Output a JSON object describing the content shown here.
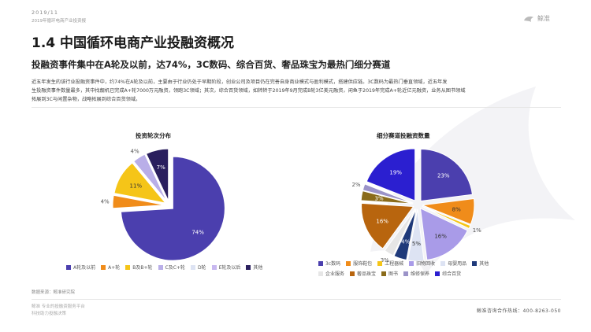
{
  "header": {
    "date": "2019/11",
    "report_name": "2019年循环电商产业投资报",
    "logo_text": "鲸准"
  },
  "page_title": "1.4 中国循环电商产业投融资概况",
  "subtitle": "投融资事件集中在A轮及以前，达74%，3C数码、综合百货、奢品珠宝为最热门细分赛道",
  "body_lines": [
    "近五年发生的该行业投融资事件中，约74%在A轮及以前，主要由于行业仍处于早期阶段，创业公司及项目仍在完善自身商业模式与盈利模式，搭建供应链。3C数码为最热门垂直领域，近五年发",
    "生投融资事件数量最多，其中找靓机已完成A+轮7000万元融资，领跑3C领域；其次，综合百货领域，如转转于2019年9月完成B轮3亿美元融资，闲鱼于2019年完成A+轮近亿元融资，业务从图书领域",
    "拓展到3C与闲置杂物，战略拓展到综合百货领域。"
  ],
  "source": "数据来源：鲸准研究院",
  "footer_left": [
    "鲸准 专业的投融资服务平台",
    "科技助力投融决策"
  ],
  "footer_right": "鲸准咨询合作热线：400-8263-050",
  "colors": {
    "brand_purple": "#4b3fae",
    "orange": "#f39c12",
    "gold": "#f5c518",
    "lavender": "#b9aee8",
    "pale_blue": "#dde3f3",
    "light_purple": "#c8b8f0",
    "navy": "#2a1f5e"
  },
  "chart_data": [
    {
      "type": "pie",
      "title": "投资轮次分布",
      "slices": [
        {
          "label": "A轮及以前",
          "value": 74,
          "color": "#4b3fae",
          "value_label": "74%"
        },
        {
          "label": "A+轮",
          "value": 4,
          "color": "#f08c1a",
          "value_label": "4%"
        },
        {
          "label": "B及B+轮",
          "value": 11,
          "color": "#f5c518",
          "value_label": "11%"
        },
        {
          "label": "C及C+轮",
          "value": 4,
          "color": "#b9aee8",
          "value_label": "4%"
        },
        {
          "label": "D轮",
          "value": 0,
          "color": "#dde3f3",
          "value_label": ""
        },
        {
          "label": "E轮及以后",
          "value": 0,
          "color": "#c8b8f0",
          "value_label": ""
        },
        {
          "label": "其他",
          "value": 7,
          "color": "#2a1f5e",
          "value_label": "7%"
        }
      ],
      "legend_position": "bottom"
    },
    {
      "type": "pie",
      "title": "细分赛道投融资数量",
      "slices": [
        {
          "label": "3c数码",
          "value": 23,
          "color": "#4b3fae",
          "value_label": "23%"
        },
        {
          "label": "服饰鞋包",
          "value": 8,
          "color": "#f08c1a",
          "value_label": "8%"
        },
        {
          "label": "工程器械",
          "value": 1,
          "color": "#f5c518",
          "value_label": "1%"
        },
        {
          "label": "旧物回收",
          "value": 16,
          "color": "#a99be8",
          "value_label": "16%"
        },
        {
          "label": "母婴用品",
          "value": 5,
          "color": "#dde3f3",
          "value_label": "5%"
        },
        {
          "label": "其他",
          "value": 4,
          "color": "#1f3a7a",
          "value_label": "4%"
        },
        {
          "label": "企业服务",
          "value": 3,
          "color": "#e6e6e6",
          "value_label": "3%"
        },
        {
          "label": "奢品珠宝",
          "value": 16,
          "color": "#b8650e",
          "value_label": "16%"
        },
        {
          "label": "图书",
          "value": 3,
          "color": "#8a6b1a",
          "value_label": "3%"
        },
        {
          "label": "维修保养",
          "value": 2,
          "color": "#9b93c8",
          "value_label": "2%"
        },
        {
          "label": "综合百货",
          "value": 19,
          "color": "#2b1fd0",
          "value_label": "19%"
        }
      ],
      "legend_position": "bottom"
    }
  ]
}
